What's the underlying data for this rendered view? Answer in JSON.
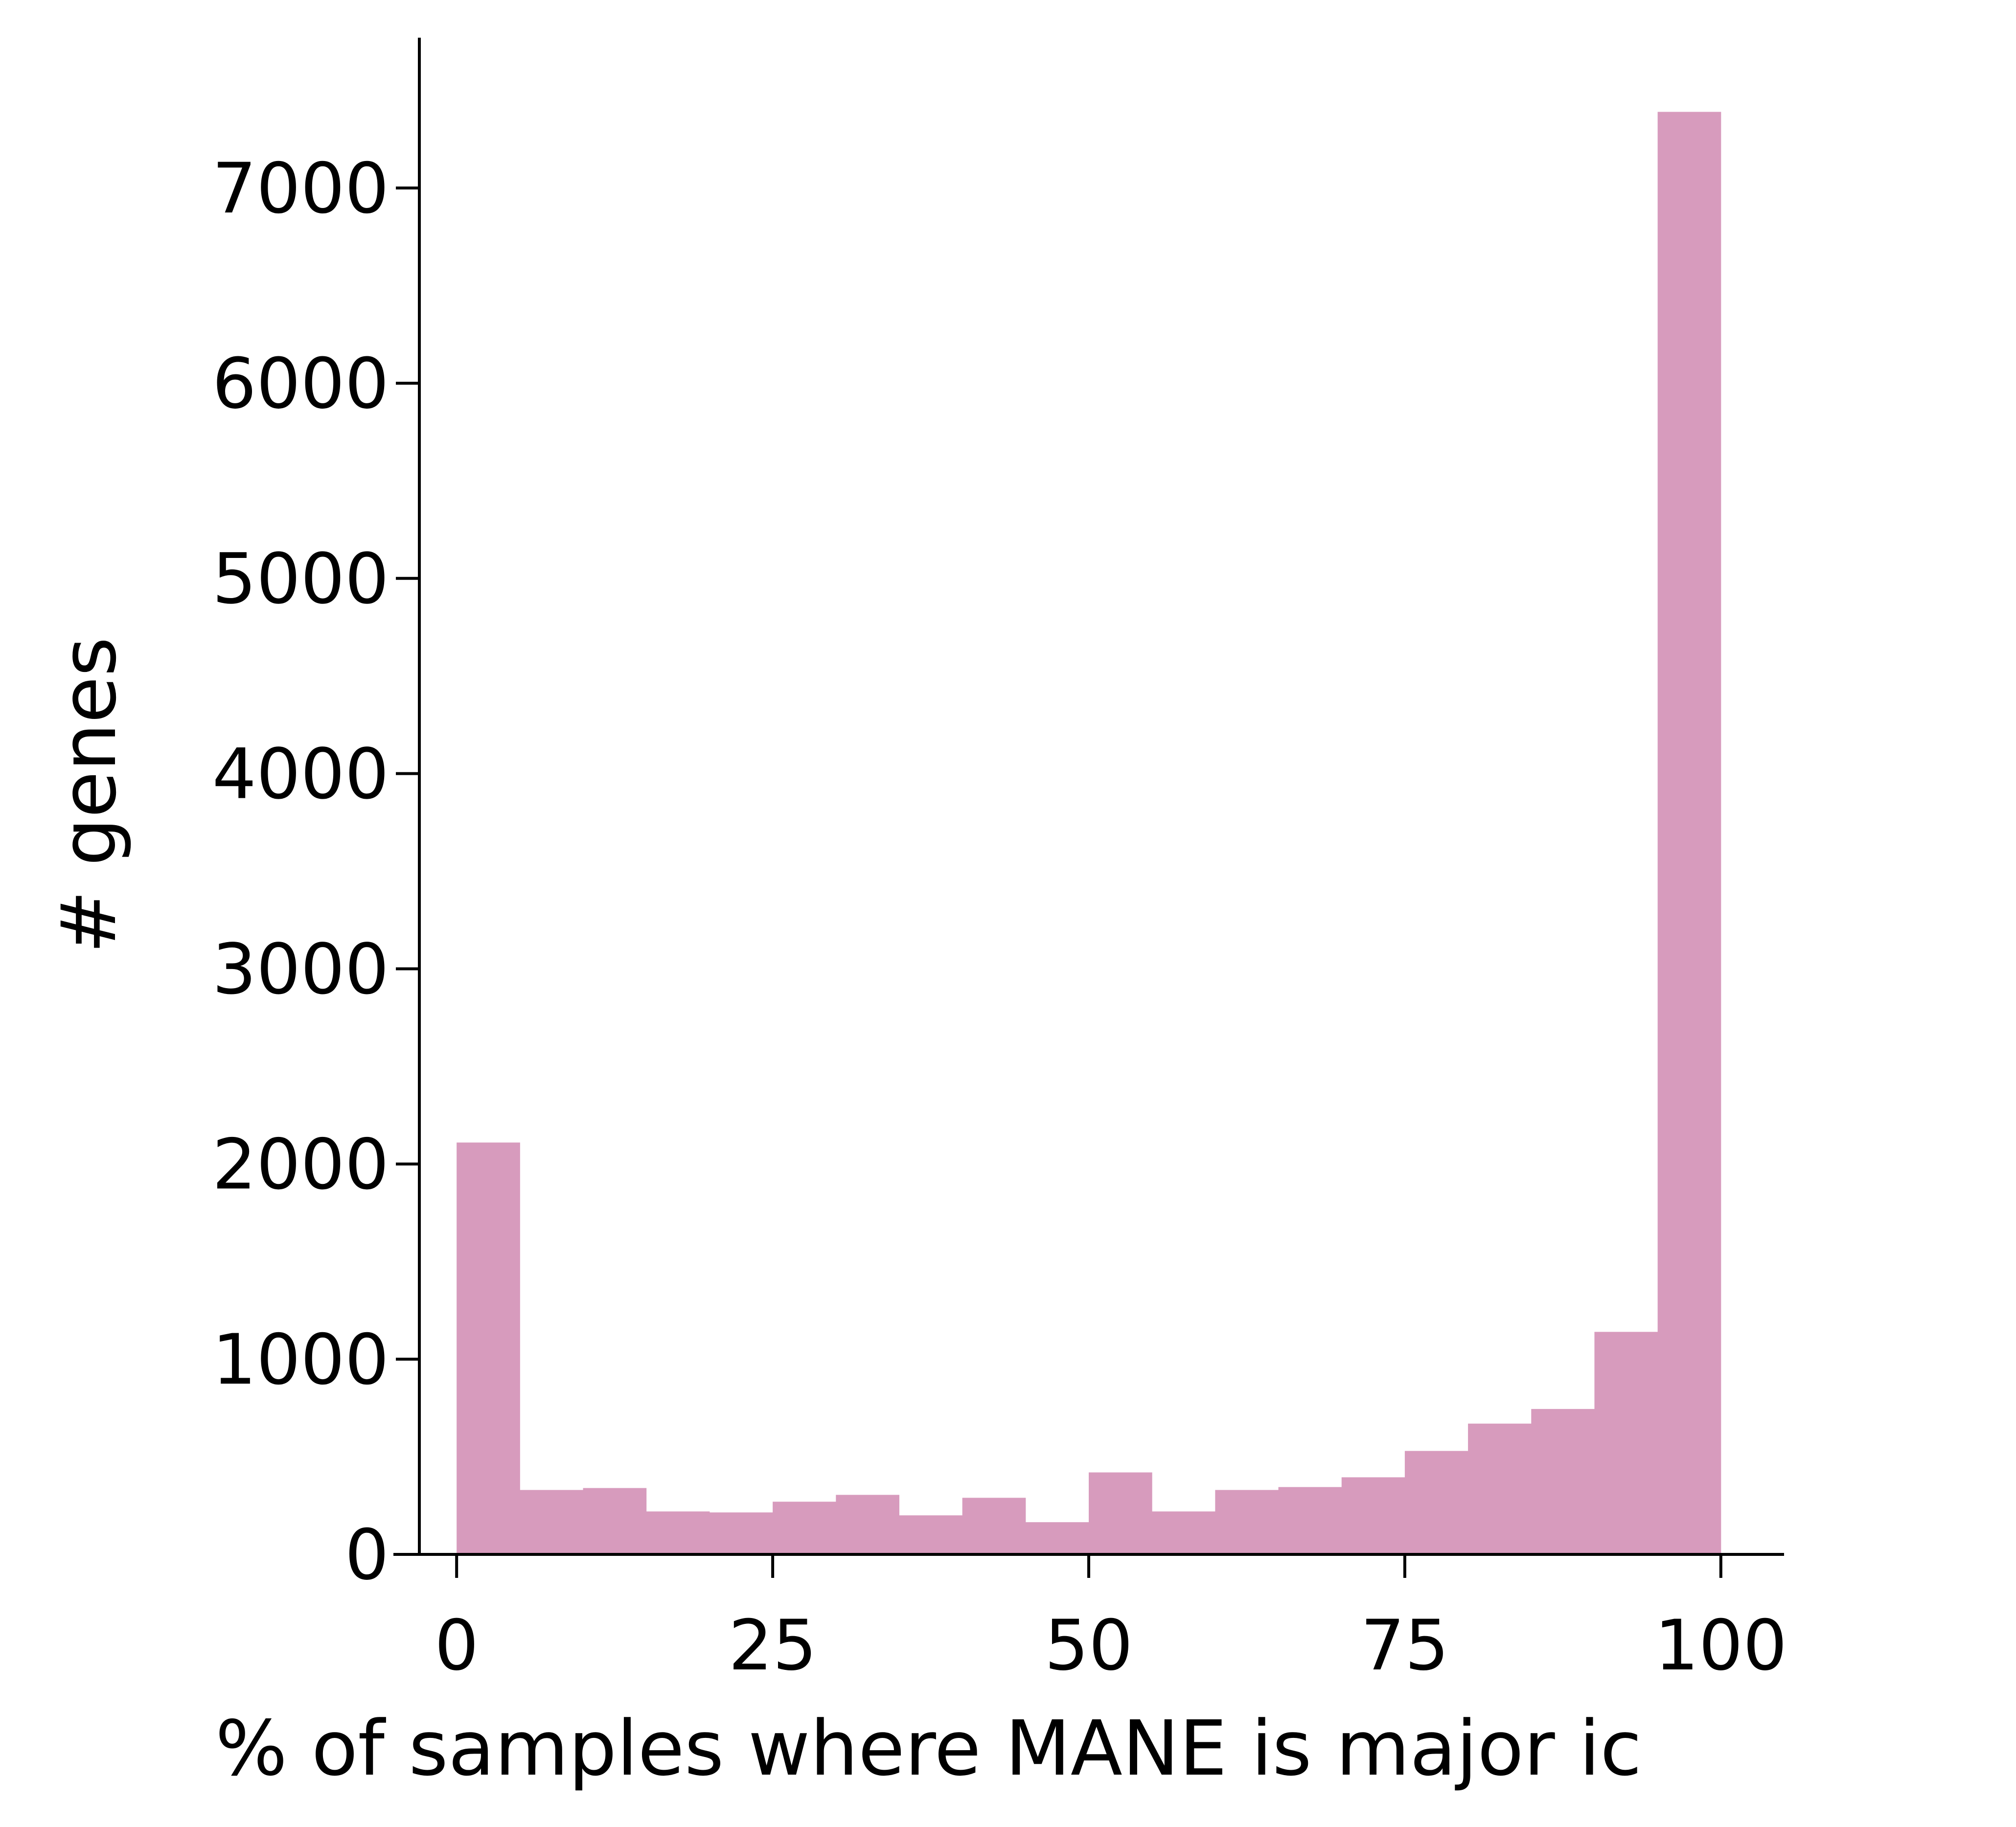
{
  "chart_data": {
    "type": "bar",
    "subtype": "histogram",
    "xlabel": "% of samples where MANE is major ic",
    "ylabel": "# genes",
    "bin_edges": [
      0,
      5,
      10,
      15,
      20,
      25,
      30,
      35,
      40,
      45,
      50,
      55,
      60,
      65,
      70,
      75,
      80,
      85,
      90,
      95,
      100
    ],
    "values": [
      2110,
      330,
      340,
      220,
      215,
      270,
      305,
      200,
      290,
      165,
      420,
      220,
      330,
      345,
      395,
      530,
      670,
      745,
      1140,
      7390
    ],
    "xlim": [
      -5,
      105
    ],
    "ylim": [
      0,
      7770
    ],
    "xticks": [
      0,
      25,
      50,
      75,
      100
    ],
    "yticks": [
      0,
      1000,
      2000,
      3000,
      4000,
      5000,
      6000,
      7000
    ],
    "grid": false,
    "legend": "none",
    "colors": {
      "bar": "#d79bbd",
      "axis": "#000000"
    }
  }
}
